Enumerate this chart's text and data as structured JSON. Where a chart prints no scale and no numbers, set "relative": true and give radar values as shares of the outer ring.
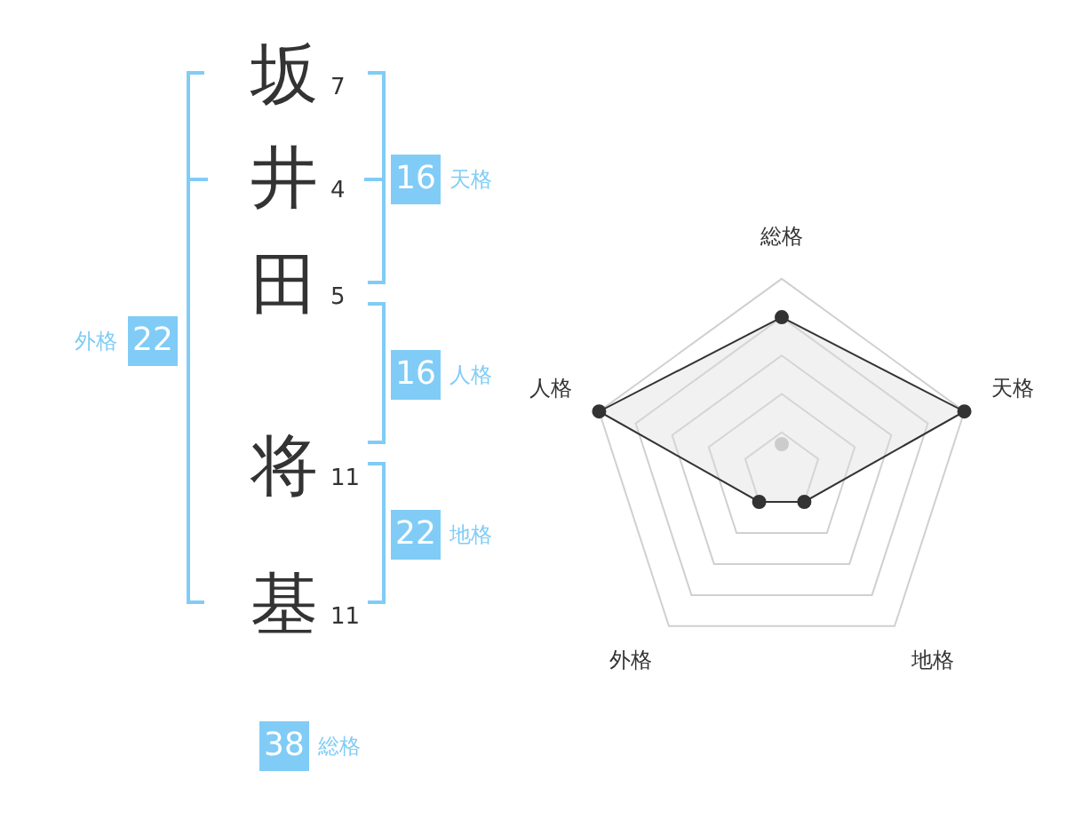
{
  "chart_data": [
    {
      "type": "other",
      "categories": [
        "坂",
        "井",
        "田",
        "将",
        "基"
      ],
      "values": [
        7,
        4,
        5,
        11,
        11
      ],
      "data_labels": true,
      "color": "#80ccf6",
      "annotations": [
        "16",
        "天格",
        "16",
        "人格",
        "22",
        "地格",
        "22",
        "外格",
        "38",
        "総格"
      ]
    },
    {
      "type": "radar",
      "categories": [
        "総格",
        "天格",
        "地格",
        "外格",
        "人格"
      ],
      "relative": true,
      "grid": true,
      "marker": "circle",
      "series": [
        {
          "color": "#333333",
          "values": [
            0.8,
            1,
            0.2,
            0.2,
            1
          ]
        }
      ]
    }
  ]
}
